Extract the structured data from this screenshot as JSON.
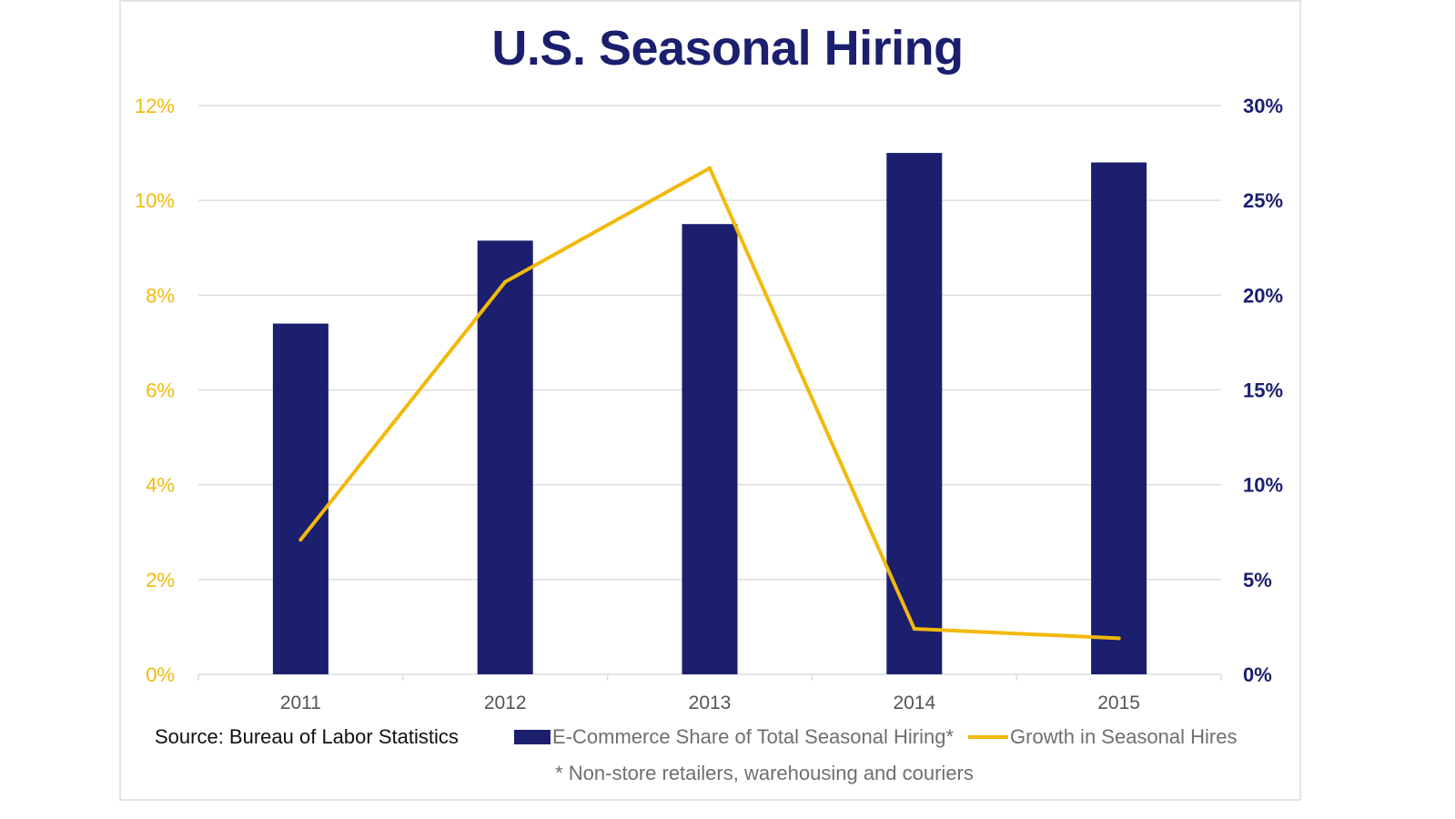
{
  "chart_data": {
    "type": "bar+line",
    "title": "U.S. Seasonal Hiring",
    "categories": [
      "2011",
      "2012",
      "2013",
      "2014",
      "2015"
    ],
    "series": [
      {
        "name": "E-Commerce Share of Total Seasonal Hiring*",
        "type": "bar",
        "axis": "left",
        "values": [
          7.4,
          9.15,
          9.5,
          11.0,
          10.8
        ]
      },
      {
        "name": "Growth in Seasonal Hires",
        "type": "line",
        "axis": "right",
        "values": [
          7.1,
          20.7,
          26.7,
          2.4,
          1.9
        ]
      }
    ],
    "y_left": {
      "min": 0,
      "max": 12,
      "step": 2,
      "ticks": [
        "0%",
        "2%",
        "4%",
        "6%",
        "8%",
        "10%",
        "12%"
      ]
    },
    "y_right": {
      "min": 0,
      "max": 30,
      "step": 5,
      "ticks": [
        "0%",
        "5%",
        "10%",
        "15%",
        "20%",
        "25%",
        "30%"
      ]
    },
    "grid": true,
    "legend_position": "bottom",
    "source": "Source: Bureau of Labor Statistics",
    "footnote": "* Non-store retailers, warehousing and couriers"
  },
  "colors": {
    "bar": "#1b1f6e",
    "line": "#f2b90c",
    "title": "#1b1f6e",
    "left_axis": "#f2b90c",
    "right_axis": "#1b1f6e",
    "grid": "#dddddd"
  }
}
